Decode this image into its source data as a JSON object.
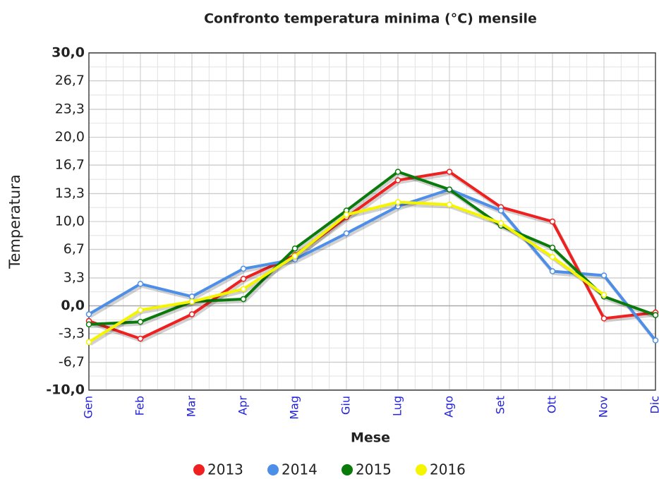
{
  "chart_data": {
    "type": "line",
    "title": "Confronto temperatura minima (°C) mensile",
    "x_label": "Mese",
    "y_label": "Temperatura",
    "categories": [
      "Gen",
      "Feb",
      "Mar",
      "Apr",
      "Mag",
      "Giu",
      "Lug",
      "Ago",
      "Set",
      "Ott",
      "Nov",
      "Dic"
    ],
    "series": [
      {
        "name": "2013",
        "color": "#ee2020",
        "values": [
          -1.8,
          -3.9,
          -1.0,
          3.2,
          6.0,
          10.5,
          14.9,
          15.9,
          11.7,
          10.0,
          -1.5,
          -0.8
        ]
      },
      {
        "name": "2014",
        "color": "#4d8fe8",
        "values": [
          -1.0,
          2.6,
          1.1,
          4.4,
          5.5,
          8.6,
          11.8,
          13.8,
          11.3,
          4.1,
          3.6,
          -4.1
        ]
      },
      {
        "name": "2015",
        "color": "#0a7a0a",
        "values": [
          -2.2,
          -1.9,
          0.5,
          0.8,
          6.8,
          11.3,
          15.9,
          13.8,
          9.5,
          6.9,
          1.1,
          -1.1
        ]
      },
      {
        "name": "2016",
        "color": "#f5f500",
        "values": [
          -4.3,
          -0.5,
          0.5,
          2.0,
          5.9,
          10.8,
          12.3,
          12.0,
          9.8,
          5.8,
          1.3,
          null
        ]
      }
    ],
    "ylim": [
      -10,
      30
    ],
    "yticks": [
      {
        "value": -10,
        "label": "-10,0"
      },
      {
        "value": -6.7,
        "label": "-6,7"
      },
      {
        "value": -3.3,
        "label": "-3,3"
      },
      {
        "value": 0,
        "label": "0,0"
      },
      {
        "value": 3.3,
        "label": "3,3"
      },
      {
        "value": 6.7,
        "label": "6,7"
      },
      {
        "value": 10,
        "label": "10,0"
      },
      {
        "value": 13.3,
        "label": "13,3"
      },
      {
        "value": 16.7,
        "label": "16,7"
      },
      {
        "value": 20,
        "label": "20,0"
      },
      {
        "value": 23.3,
        "label": "23,3"
      },
      {
        "value": 26.7,
        "label": "26,7"
      },
      {
        "value": 30,
        "label": "30,0"
      }
    ],
    "grid": true,
    "legend": "bottom"
  }
}
